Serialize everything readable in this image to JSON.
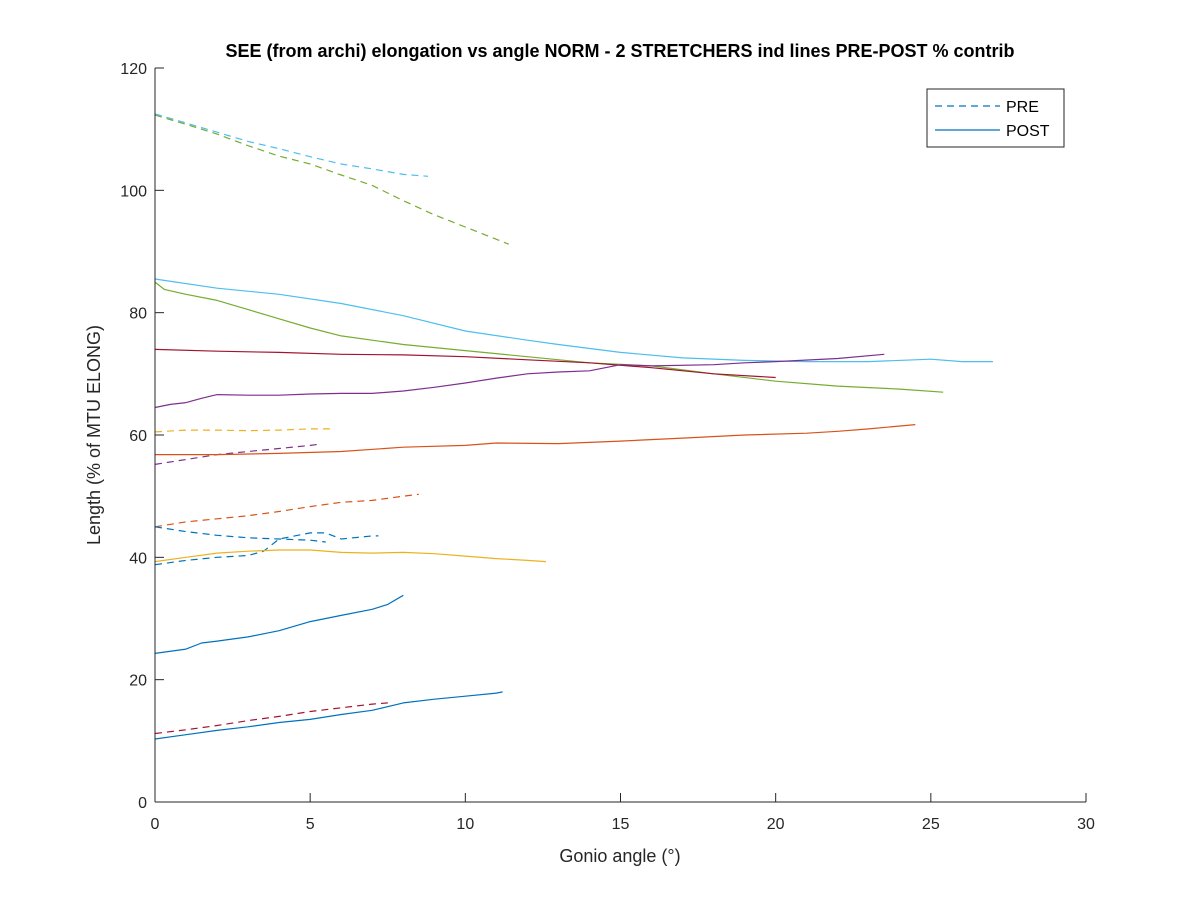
{
  "chart_data": {
    "type": "line",
    "title": "SEE (from archi) elongation vs angle NORM - 2 STRETCHERS ind lines PRE-POST % contrib",
    "xlabel": "Gonio angle (°)",
    "ylabel": "Length (% of MTU ELONG)",
    "xlim": [
      0,
      30
    ],
    "ylim": [
      0,
      120
    ],
    "xticks": [
      0,
      5,
      10,
      15,
      20,
      25,
      30
    ],
    "yticks": [
      0,
      20,
      40,
      60,
      80,
      100,
      120
    ],
    "grid": false,
    "legend": {
      "placement": "top-right",
      "entries": [
        {
          "label": "PRE",
          "style": "dashed",
          "color": "#0072BD"
        },
        {
          "label": "POST",
          "style": "solid",
          "color": "#0072BD"
        }
      ]
    },
    "series": [
      {
        "phase": "PRE",
        "color": "#4DBEEE",
        "points": [
          [
            0,
            112.5
          ],
          [
            1,
            111
          ],
          [
            2,
            109.5
          ],
          [
            3,
            108
          ],
          [
            4,
            106.8
          ],
          [
            5,
            105.5
          ],
          [
            6,
            104.3
          ],
          [
            7,
            103.5
          ],
          [
            8,
            102.6
          ],
          [
            8.8,
            102.3
          ]
        ]
      },
      {
        "phase": "PRE",
        "color": "#77AC30",
        "points": [
          [
            0,
            112.3
          ],
          [
            1,
            110.8
          ],
          [
            2,
            109.2
          ],
          [
            3,
            107.3
          ],
          [
            4,
            105.6
          ],
          [
            5,
            104.3
          ],
          [
            6,
            102.5
          ],
          [
            7,
            100.8
          ],
          [
            8,
            98.3
          ],
          [
            9,
            96
          ],
          [
            10,
            94
          ],
          [
            11,
            92
          ],
          [
            11.4,
            91.2
          ]
        ]
      },
      {
        "phase": "PRE",
        "color": "#EDB120",
        "points": [
          [
            0,
            60.5
          ],
          [
            1,
            60.8
          ],
          [
            2,
            60.8
          ],
          [
            3,
            60.7
          ],
          [
            4,
            60.8
          ],
          [
            5,
            61
          ],
          [
            5.8,
            61
          ]
        ]
      },
      {
        "phase": "PRE",
        "color": "#7E2F8E",
        "points": [
          [
            0,
            55.2
          ],
          [
            1,
            56
          ],
          [
            2,
            56.8
          ],
          [
            3,
            57.3
          ],
          [
            4,
            57.8
          ],
          [
            5,
            58.3
          ],
          [
            5.3,
            58.5
          ]
        ]
      },
      {
        "phase": "PRE",
        "color": "#D95319",
        "points": [
          [
            0,
            45
          ],
          [
            1,
            45.8
          ],
          [
            2,
            46.3
          ],
          [
            3,
            46.8
          ],
          [
            4,
            47.5
          ],
          [
            5,
            48.3
          ],
          [
            6,
            49
          ],
          [
            7,
            49.3
          ],
          [
            8,
            50
          ],
          [
            8.5,
            50.3
          ]
        ]
      },
      {
        "phase": "PRE",
        "color": "#0072BD",
        "points": [
          [
            0,
            45
          ],
          [
            1,
            44.2
          ],
          [
            2,
            43.6
          ],
          [
            3,
            43.2
          ],
          [
            4,
            43
          ],
          [
            5,
            42.8
          ],
          [
            5.5,
            42.5
          ]
        ]
      },
      {
        "phase": "PRE",
        "color": "#0072BD",
        "points": [
          [
            0,
            38.8
          ],
          [
            1,
            39.5
          ],
          [
            2,
            40
          ],
          [
            3,
            40.3
          ],
          [
            3.5,
            41
          ],
          [
            4,
            43
          ],
          [
            5,
            44
          ],
          [
            5.5,
            44
          ],
          [
            6,
            43
          ],
          [
            7,
            43.5
          ],
          [
            7.2,
            43.5
          ]
        ]
      },
      {
        "phase": "PRE",
        "color": "#A2142F",
        "points": [
          [
            0,
            11.2
          ],
          [
            1,
            11.8
          ],
          [
            2,
            12.5
          ],
          [
            3,
            13.3
          ],
          [
            4,
            14
          ],
          [
            5,
            14.8
          ],
          [
            6,
            15.4
          ],
          [
            7,
            16
          ],
          [
            7.5,
            16.2
          ]
        ]
      },
      {
        "phase": "POST",
        "color": "#4DBEEE",
        "points": [
          [
            0,
            85.5
          ],
          [
            2,
            84
          ],
          [
            4,
            83
          ],
          [
            6,
            81.5
          ],
          [
            8,
            79.5
          ],
          [
            10,
            77
          ],
          [
            12,
            75.5
          ],
          [
            13,
            74.8
          ],
          [
            15,
            73.5
          ],
          [
            17,
            72.6
          ],
          [
            19,
            72.2
          ],
          [
            21,
            72
          ],
          [
            23,
            72
          ],
          [
            25,
            72.4
          ],
          [
            26,
            72
          ],
          [
            27,
            72
          ]
        ]
      },
      {
        "phase": "POST",
        "color": "#77AC30",
        "points": [
          [
            0,
            85
          ],
          [
            0.3,
            83.8
          ],
          [
            1,
            83
          ],
          [
            2,
            82
          ],
          [
            3,
            80.5
          ],
          [
            4,
            79
          ],
          [
            5,
            77.5
          ],
          [
            6,
            76.2
          ],
          [
            7,
            75.5
          ],
          [
            8,
            74.8
          ],
          [
            10,
            73.8
          ],
          [
            12,
            72.8
          ],
          [
            14,
            71.8
          ],
          [
            16,
            71.3
          ],
          [
            18,
            70
          ],
          [
            20,
            68.8
          ],
          [
            22,
            68
          ],
          [
            24,
            67.5
          ],
          [
            25.4,
            67
          ]
        ]
      },
      {
        "phase": "POST",
        "color": "#A2142F",
        "points": [
          [
            0,
            74
          ],
          [
            2,
            73.7
          ],
          [
            4,
            73.5
          ],
          [
            6,
            73.2
          ],
          [
            8,
            73.1
          ],
          [
            10,
            72.8
          ],
          [
            12,
            72.3
          ],
          [
            14,
            71.8
          ],
          [
            16,
            71
          ],
          [
            18,
            70
          ],
          [
            20,
            69.4
          ]
        ]
      },
      {
        "phase": "POST",
        "color": "#7E2F8E",
        "points": [
          [
            0,
            64.5
          ],
          [
            0.5,
            65
          ],
          [
            1,
            65.3
          ],
          [
            1.5,
            66
          ],
          [
            2,
            66.6
          ],
          [
            3,
            66.5
          ],
          [
            4,
            66.5
          ],
          [
            5,
            66.7
          ],
          [
            6,
            66.8
          ],
          [
            7,
            66.8
          ],
          [
            8,
            67.2
          ],
          [
            9,
            67.8
          ],
          [
            10,
            68.5
          ],
          [
            11,
            69.3
          ],
          [
            12,
            70
          ],
          [
            13,
            70.3
          ],
          [
            14,
            70.5
          ],
          [
            15,
            71.5
          ],
          [
            16,
            71.3
          ],
          [
            18,
            71.5
          ],
          [
            19,
            71.8
          ],
          [
            20,
            72
          ],
          [
            22,
            72.5
          ],
          [
            23.5,
            73.2
          ]
        ]
      },
      {
        "phase": "POST",
        "color": "#D95319",
        "points": [
          [
            0,
            56.8
          ],
          [
            2,
            56.8
          ],
          [
            4,
            57
          ],
          [
            6,
            57.3
          ],
          [
            8,
            58
          ],
          [
            10,
            58.3
          ],
          [
            11,
            58.7
          ],
          [
            13,
            58.6
          ],
          [
            15,
            59
          ],
          [
            17,
            59.5
          ],
          [
            19,
            60
          ],
          [
            21,
            60.3
          ],
          [
            22,
            60.6
          ],
          [
            23,
            61
          ],
          [
            24.5,
            61.7
          ]
        ]
      },
      {
        "phase": "POST",
        "color": "#EDB120",
        "points": [
          [
            0,
            39.3
          ],
          [
            1,
            40
          ],
          [
            2,
            40.7
          ],
          [
            3,
            41
          ],
          [
            4,
            41.2
          ],
          [
            5,
            41.2
          ],
          [
            6,
            40.8
          ],
          [
            7,
            40.7
          ],
          [
            8,
            40.8
          ],
          [
            9,
            40.6
          ],
          [
            10,
            40.2
          ],
          [
            11,
            39.8
          ],
          [
            12,
            39.5
          ],
          [
            12.6,
            39.3
          ]
        ]
      },
      {
        "phase": "POST",
        "color": "#0072BD",
        "points": [
          [
            0,
            24.3
          ],
          [
            1,
            25
          ],
          [
            1.5,
            26
          ],
          [
            2,
            26.3
          ],
          [
            3,
            27
          ],
          [
            4,
            28
          ],
          [
            5,
            29.5
          ],
          [
            6,
            30.5
          ],
          [
            7,
            31.5
          ],
          [
            7.5,
            32.3
          ],
          [
            8,
            33.8
          ]
        ]
      },
      {
        "phase": "POST",
        "color": "#0072BD",
        "points": [
          [
            0,
            10.3
          ],
          [
            1,
            11
          ],
          [
            2,
            11.7
          ],
          [
            3,
            12.3
          ],
          [
            4,
            13
          ],
          [
            5,
            13.5
          ],
          [
            6,
            14.3
          ],
          [
            7,
            15
          ],
          [
            8,
            16.2
          ],
          [
            9,
            16.8
          ],
          [
            10,
            17.3
          ],
          [
            11,
            17.8
          ],
          [
            11.2,
            18
          ]
        ]
      }
    ]
  }
}
